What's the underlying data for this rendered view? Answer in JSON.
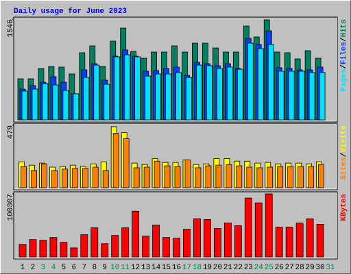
{
  "chart_data": [
    {
      "type": "bar",
      "title": "Daily usage for June 2023",
      "ylim": [
        0,
        1546
      ],
      "yticks": [
        1546
      ],
      "legend_separator": "/",
      "series": [
        {
          "name": "Hits",
          "color": "#008060",
          "values": [
            631,
            631,
            789,
            820,
            810,
            705,
            1031,
            1136,
            820,
            1209,
            1409,
            1052,
            947,
            1041,
            1041,
            1136,
            1041,
            1178,
            1178,
            1104,
            1041,
            1041,
            1441,
            1273,
            1536,
            1041,
            1031,
            936,
            1062,
            947,
            null
          ]
        },
        {
          "name": "Files",
          "color": "#0040ff",
          "values": [
            473,
            526,
            578,
            663,
            578,
            400,
            768,
            862,
            610,
            978,
            1073,
            978,
            747,
            757,
            789,
            810,
            684,
            883,
            862,
            831,
            862,
            789,
            1252,
            1157,
            1367,
            800,
            789,
            768,
            768,
            810,
            null
          ]
        },
        {
          "name": "Pages",
          "color": "#00e0ff",
          "values": [
            442,
            473,
            557,
            536,
            452,
            400,
            652,
            841,
            547,
            968,
            999,
            968,
            673,
            705,
            705,
            726,
            652,
            841,
            831,
            789,
            810,
            778,
            1178,
            1094,
            1157,
            747,
            747,
            747,
            726,
            726,
            null
          ]
        }
      ]
    },
    {
      "type": "bar",
      "ylim": [
        0,
        479
      ],
      "yticks": [
        479
      ],
      "legend_separator": "/",
      "series": [
        {
          "name": "Visits",
          "color": "#ffff00",
          "values": [
            199,
            173,
            189,
            158,
            163,
            173,
            163,
            183,
            199,
            469,
            423,
            189,
            178,
            224,
            194,
            194,
            214,
            178,
            183,
            224,
            224,
            204,
            204,
            189,
            194,
            183,
            189,
            189,
            183,
            199,
            null
          ]
        },
        {
          "name": "Sites",
          "color": "#ff8000",
          "values": [
            163,
            132,
            183,
            132,
            143,
            148,
            148,
            158,
            132,
            418,
            377,
            153,
            158,
            204,
            168,
            163,
            214,
            153,
            168,
            173,
            178,
            168,
            158,
            153,
            158,
            163,
            163,
            163,
            163,
            178,
            null
          ]
        }
      ]
    },
    {
      "type": "bar",
      "ylim": [
        0,
        100307
      ],
      "yticks": [
        100307
      ],
      "categories": [
        "1",
        "2",
        "3",
        "4",
        "5",
        "6",
        "7",
        "8",
        "9",
        "10",
        "11",
        "12",
        "13",
        "14",
        "15",
        "16",
        "17",
        "18",
        "19",
        "20",
        "21",
        "22",
        "23",
        "24",
        "25",
        "26",
        "27",
        "28",
        "29",
        "30",
        "31"
      ],
      "category_colors": [
        "#000000",
        "#000000",
        "#00805c",
        "#00805c",
        "#000000",
        "#000000",
        "#000000",
        "#000000",
        "#000000",
        "#00805c",
        "#00805c",
        "#000000",
        "#000000",
        "#000000",
        "#000000",
        "#000000",
        "#00805c",
        "#00805c",
        "#000000",
        "#000000",
        "#000000",
        "#000000",
        "#000000",
        "#00805c",
        "#00805c",
        "#000000",
        "#000000",
        "#000000",
        "#000000",
        "#000000",
        "#00805c"
      ],
      "series": [
        {
          "name": "KBytes",
          "color": "#ff0000",
          "values": [
            19841,
            27557,
            26455,
            30865,
            23148,
            14330,
            35273,
            46297,
            20943,
            34171,
            46297,
            72751,
            33069,
            50705,
            30865,
            29762,
            44092,
            60626,
            59524,
            45194,
            54012,
            49603,
            93693,
            85978,
            100307,
            47399,
            47399,
            54012,
            60626,
            51807,
            null
          ]
        }
      ]
    }
  ]
}
